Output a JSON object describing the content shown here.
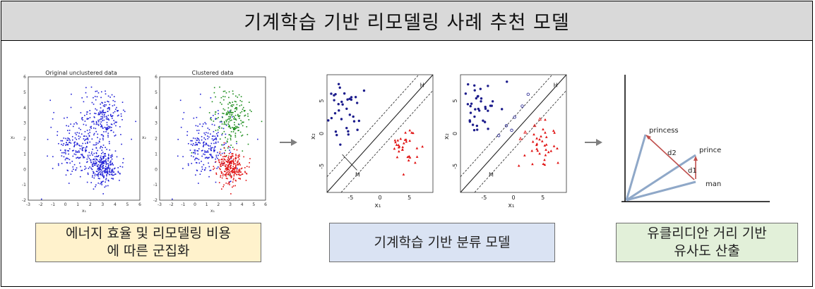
{
  "title": "기계학습 기반 리모델링 사례 추천 모델",
  "captions": {
    "clustering_line1": "에너지 효율 및 리모델링 비용",
    "clustering_line2": "에 따른 군집화",
    "classification": "기계학습 기반 분류 모델",
    "similarity_line1": "유클리디안 거리 기반",
    "similarity_line2": "유사도 산출"
  },
  "cluster_plots": {
    "left_title": "Original unclustered data",
    "right_title": "Clustered data",
    "x_ticks": [
      "-3",
      "-2",
      "-1",
      "0",
      "1",
      "2",
      "3",
      "4",
      "5",
      "6"
    ],
    "y_ticks": [
      "6",
      "5",
      "4",
      "3",
      "2",
      "1",
      "0",
      "-1",
      "-2"
    ],
    "x_label": "x₁",
    "y_label": "x₂",
    "cluster_colors": [
      "#1f1fd6",
      "#1a8c1a",
      "#e01010"
    ]
  },
  "svm_plots": {
    "x_ticks": [
      "-5",
      "0",
      "5"
    ],
    "y_ticks": [
      "5",
      "0",
      "-5"
    ],
    "x_label": "x₁",
    "y_label": "x₂",
    "hyperplane_label": "H",
    "margin_label": "M",
    "class_colors": [
      "#1c1c8c",
      "#e01010"
    ]
  },
  "vector_plot": {
    "labels": [
      "princess",
      "prince",
      "man"
    ],
    "distance_labels": [
      "d2",
      "d1"
    ],
    "vector_color": "#8fa8c8",
    "distance_color": "#c0504d"
  },
  "arrows_color": "#7f7f7f"
}
